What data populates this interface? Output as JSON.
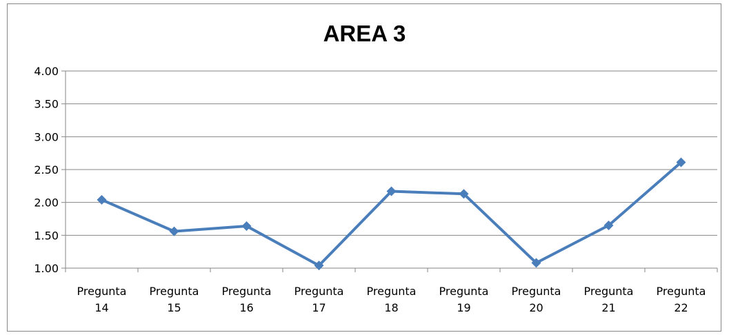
{
  "chart_data": {
    "type": "line",
    "title": "AREA 3",
    "xlabel": "",
    "ylabel": "",
    "categories": [
      [
        "Pregunta",
        "14"
      ],
      [
        "Pregunta",
        "15"
      ],
      [
        "Pregunta",
        "16"
      ],
      [
        "Pregunta",
        "17"
      ],
      [
        "Pregunta",
        "18"
      ],
      [
        "Pregunta",
        "19"
      ],
      [
        "Pregunta",
        "20"
      ],
      [
        "Pregunta",
        "21"
      ],
      [
        "Pregunta",
        "22"
      ]
    ],
    "series": [
      {
        "values": [
          2.04,
          1.56,
          1.64,
          1.04,
          2.17,
          2.13,
          1.08,
          1.65,
          2.61
        ]
      }
    ],
    "ylim": [
      1.0,
      4.0
    ],
    "yticks": [
      "1.00",
      "1.50",
      "2.00",
      "2.50",
      "3.00",
      "3.50",
      "4.00"
    ],
    "grid": true,
    "legend": "none",
    "colors": {
      "series": "#4a7ebb",
      "grid": "#868686",
      "axis": "#868686"
    }
  }
}
